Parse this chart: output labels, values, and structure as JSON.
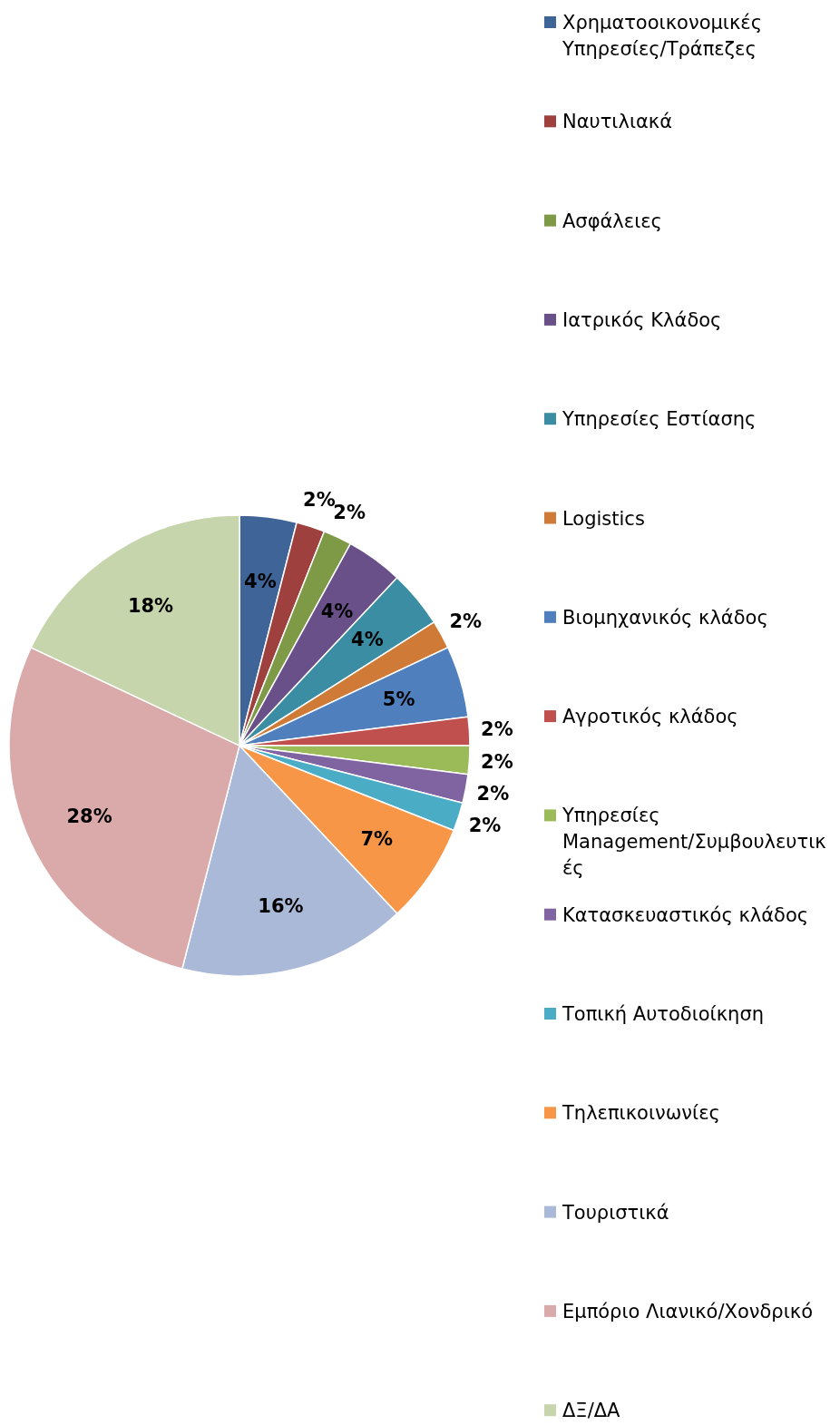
{
  "chart_data": {
    "type": "pie",
    "categories": [
      "Χρηματοοικονομικές Υπηρεσίες/Τράπεζες",
      "Ναυτιλιακά",
      "Ασφάλειες",
      "Ιατρικός Κλάδος",
      "Υπηρεσίες Εστίασης",
      "Logistics",
      "Βιομηχανικός κλάδος",
      "Αγροτικός κλάδος",
      "Υπηρεσίες Management/Συμβουλευτικές",
      "Κατασκευαστικός κλάδος",
      "Τοπική Αυτοδιοίκηση",
      "Τηλεπικοινωνίες",
      "Τουριστικά",
      "Εμπόριο Λιανικό/Χονδρικό",
      "ΔΞ/ΔΑ"
    ],
    "values": [
      4,
      2,
      2,
      4,
      4,
      2,
      5,
      2,
      2,
      2,
      2,
      7,
      16,
      28,
      18
    ],
    "colors": [
      "#3f6598",
      "#9e403d",
      "#7f9a47",
      "#6a5089",
      "#3a8da3",
      "#cf7a36",
      "#4f7fbd",
      "#c0504d",
      "#9bbb59",
      "#8064a2",
      "#4bacc6",
      "#f79646",
      "#aab9d7",
      "#d9aaa9",
      "#c6d5ac"
    ],
    "value_labels": [
      "4%",
      "2%",
      "2%",
      "4%",
      "4%",
      "2%",
      "5%",
      "2%",
      "2%",
      "2%",
      "2%",
      "7%",
      "16%",
      "28%",
      "18%"
    ],
    "legend": "right"
  }
}
